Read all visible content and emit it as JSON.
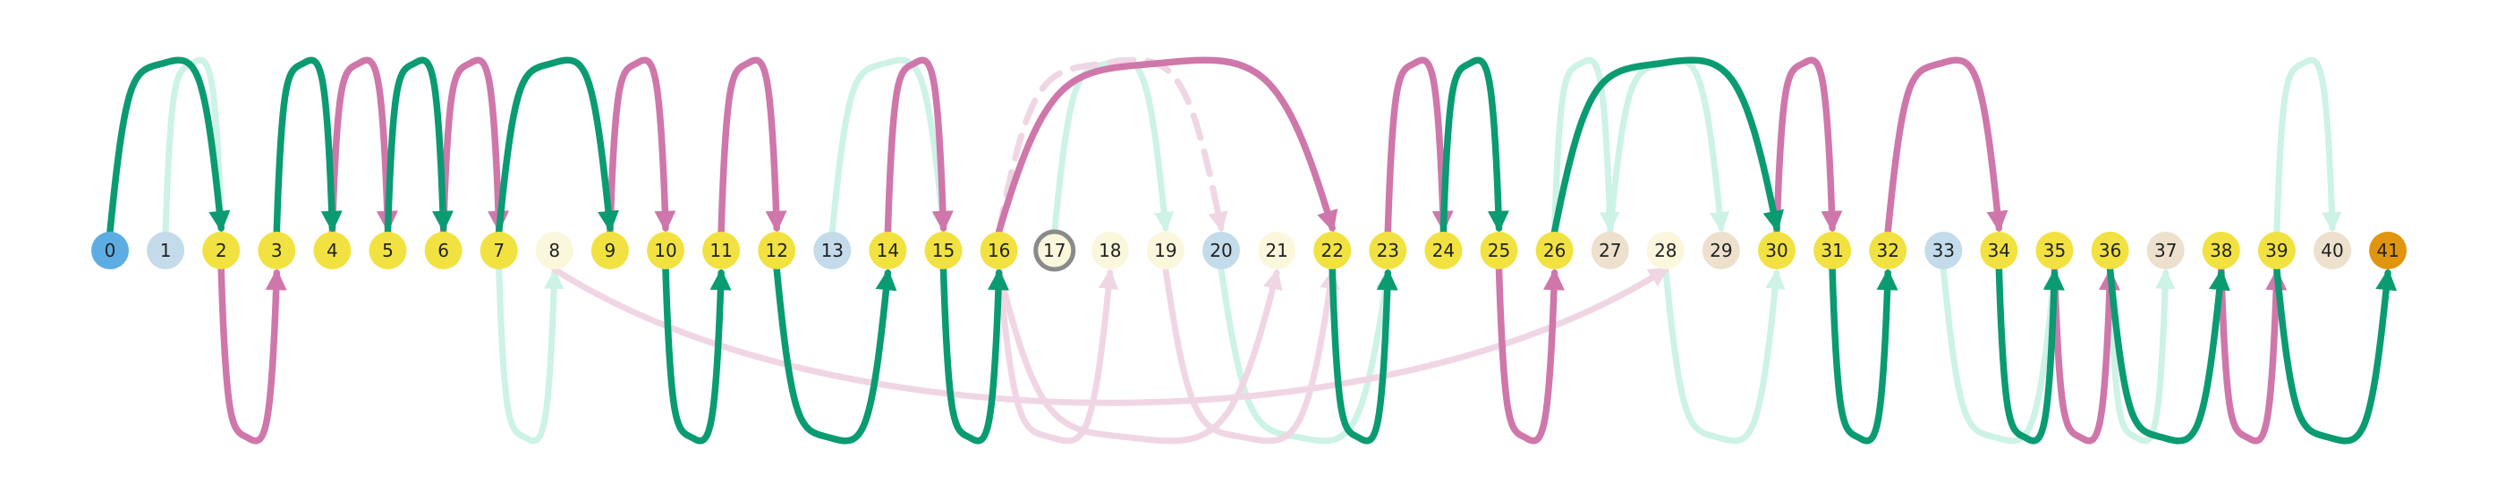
{
  "nodes": [
    {
      "label": "0",
      "color": "#5dade2"
    },
    {
      "label": "1",
      "color": "#c3dbea"
    },
    {
      "label": "2",
      "color": "#f1e241"
    },
    {
      "label": "3",
      "color": "#f1e241"
    },
    {
      "label": "4",
      "color": "#f1e241"
    },
    {
      "label": "5",
      "color": "#f1e241"
    },
    {
      "label": "6",
      "color": "#f1e241"
    },
    {
      "label": "7",
      "color": "#f1e241"
    },
    {
      "label": "8",
      "color": "#fbf7dc"
    },
    {
      "label": "9",
      "color": "#f1e241"
    },
    {
      "label": "10",
      "color": "#f1e241"
    },
    {
      "label": "11",
      "color": "#f1e241"
    },
    {
      "label": "12",
      "color": "#f1e241"
    },
    {
      "label": "13",
      "color": "#c3dbea"
    },
    {
      "label": "14",
      "color": "#f1e241"
    },
    {
      "label": "15",
      "color": "#f1e241"
    },
    {
      "label": "16",
      "color": "#f1e241"
    },
    {
      "label": "17",
      "color": "#fbf7dc",
      "outline": "#8a8a8a"
    },
    {
      "label": "18",
      "color": "#fbf7dc"
    },
    {
      "label": "19",
      "color": "#fbf7dc"
    },
    {
      "label": "20",
      "color": "#c3dbea"
    },
    {
      "label": "21",
      "color": "#fbf7dc"
    },
    {
      "label": "22",
      "color": "#f1e241"
    },
    {
      "label": "23",
      "color": "#f1e241"
    },
    {
      "label": "24",
      "color": "#f1e241"
    },
    {
      "label": "25",
      "color": "#f1e241"
    },
    {
      "label": "26",
      "color": "#f1e241"
    },
    {
      "label": "27",
      "color": "#ede0cc"
    },
    {
      "label": "28",
      "color": "#fbf7dc"
    },
    {
      "label": "29",
      "color": "#ede0cc"
    },
    {
      "label": "30",
      "color": "#f1e241"
    },
    {
      "label": "31",
      "color": "#f1e241"
    },
    {
      "label": "32",
      "color": "#f1e241"
    },
    {
      "label": "33",
      "color": "#c3dbea"
    },
    {
      "label": "34",
      "color": "#f1e241"
    },
    {
      "label": "35",
      "color": "#f1e241"
    },
    {
      "label": "36",
      "color": "#f1e241"
    },
    {
      "label": "37",
      "color": "#ede0cc"
    },
    {
      "label": "38",
      "color": "#f1e241"
    },
    {
      "label": "39",
      "color": "#f1e241"
    },
    {
      "label": "40",
      "color": "#ede0cc"
    },
    {
      "label": "41",
      "color": "#e1950e"
    }
  ],
  "edge_colors": {
    "green": "#0a9b72",
    "pink": "#cf77aa",
    "light_green": "#cdf2e6",
    "light_pink": "#f0d6e4"
  },
  "edges": [
    {
      "from": 0,
      "to": 2,
      "side": "top",
      "style": "green"
    },
    {
      "from": 1,
      "to": 2,
      "side": "top",
      "style": "light_green"
    },
    {
      "from": 2,
      "to": 3,
      "side": "bottom",
      "style": "pink"
    },
    {
      "from": 3,
      "to": 4,
      "side": "top",
      "style": "green"
    },
    {
      "from": 4,
      "to": 5,
      "side": "top",
      "style": "pink"
    },
    {
      "from": 5,
      "to": 6,
      "side": "top",
      "style": "green"
    },
    {
      "from": 6,
      "to": 7,
      "side": "top",
      "style": "pink"
    },
    {
      "from": 7,
      "to": 8,
      "side": "bottom",
      "style": "light_green"
    },
    {
      "from": 7,
      "to": 9,
      "side": "top",
      "style": "green"
    },
    {
      "from": 8,
      "to": 28,
      "side": "bottom",
      "style": "light_pink",
      "flat": true
    },
    {
      "from": 9,
      "to": 10,
      "side": "top",
      "style": "pink"
    },
    {
      "from": 10,
      "to": 11,
      "side": "bottom",
      "style": "green"
    },
    {
      "from": 11,
      "to": 12,
      "side": "top",
      "style": "pink"
    },
    {
      "from": 12,
      "to": 14,
      "side": "bottom",
      "style": "green"
    },
    {
      "from": 13,
      "to": 15,
      "side": "top",
      "style": "light_green"
    },
    {
      "from": 14,
      "to": 15,
      "side": "top",
      "style": "pink"
    },
    {
      "from": 15,
      "to": 16,
      "side": "bottom",
      "style": "green"
    },
    {
      "from": 16,
      "to": 22,
      "side": "top",
      "style": "pink"
    },
    {
      "from": 16,
      "to": 20,
      "side": "top",
      "style": "light_pink",
      "dashed": true
    },
    {
      "from": 16,
      "to": 18,
      "side": "bottom",
      "style": "light_pink"
    },
    {
      "from": 16,
      "to": 21,
      "side": "bottom",
      "style": "light_pink"
    },
    {
      "from": 19,
      "to": 22,
      "side": "bottom",
      "style": "light_pink"
    },
    {
      "from": 17,
      "to": 19,
      "side": "top",
      "style": "light_green"
    },
    {
      "from": 20,
      "to": 23,
      "side": "bottom",
      "style": "light_green"
    },
    {
      "from": 22,
      "to": 23,
      "side": "bottom",
      "style": "green"
    },
    {
      "from": 23,
      "to": 24,
      "side": "top",
      "style": "pink"
    },
    {
      "from": 24,
      "to": 25,
      "side": "top",
      "style": "green"
    },
    {
      "from": 25,
      "to": 26,
      "side": "bottom",
      "style": "pink"
    },
    {
      "from": 26,
      "to": 30,
      "side": "top",
      "style": "green"
    },
    {
      "from": 26,
      "to": 27,
      "side": "top",
      "style": "light_green"
    },
    {
      "from": 27,
      "to": 29,
      "side": "top",
      "style": "light_green"
    },
    {
      "from": 28,
      "to": 30,
      "side": "bottom",
      "style": "light_green"
    },
    {
      "from": 30,
      "to": 31,
      "side": "top",
      "style": "pink"
    },
    {
      "from": 31,
      "to": 32,
      "side": "bottom",
      "style": "green"
    },
    {
      "from": 32,
      "to": 34,
      "side": "top",
      "style": "pink"
    },
    {
      "from": 33,
      "to": 35,
      "side": "bottom",
      "style": "light_green"
    },
    {
      "from": 34,
      "to": 35,
      "side": "bottom",
      "style": "green"
    },
    {
      "from": 35,
      "to": 36,
      "side": "bottom",
      "style": "pink"
    },
    {
      "from": 36,
      "to": 37,
      "side": "bottom",
      "style": "light_green"
    },
    {
      "from": 36,
      "to": 38,
      "side": "bottom",
      "style": "green"
    },
    {
      "from": 38,
      "to": 39,
      "side": "bottom",
      "style": "pink"
    },
    {
      "from": 39,
      "to": 41,
      "side": "bottom",
      "style": "green"
    },
    {
      "from": 39,
      "to": 40,
      "side": "top",
      "style": "light_green"
    }
  ]
}
